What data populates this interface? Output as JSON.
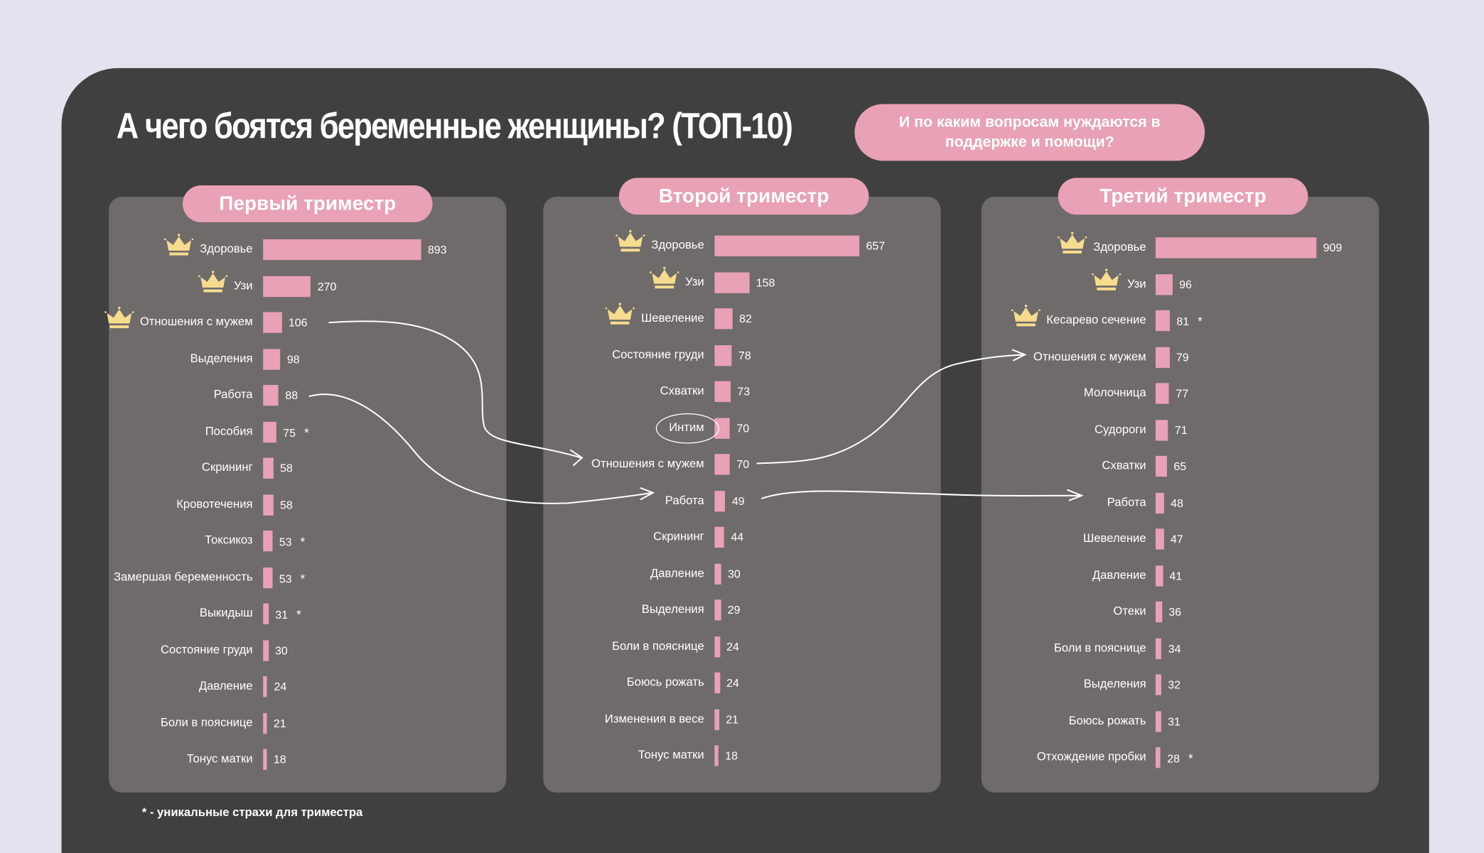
{
  "title": "А чего боятся беременные женщины? (ТОП-10)",
  "question_pill": "И по каким вопросам нуждаются в поддержке и помощи?",
  "footnote": "* - уникальные страхи для триместра",
  "colors": {
    "background": "#e4e2ee",
    "card": "#404040",
    "panel": "#6f6b6a",
    "bar": "#e8a1b5",
    "crown": "#f7dc8f",
    "text": "#ffffff"
  },
  "unique_marker": "*",
  "chart_data": [
    {
      "type": "bar",
      "orientation": "horizontal",
      "title": "Первый триместр",
      "categories": [
        "Здоровье",
        "Узи",
        "Отношения с мужем",
        "Выделения",
        "Работа",
        "Пособия",
        "Скрининг",
        "Кровотечения",
        "Токсикоз",
        "Замершая беременность",
        "Выкидыш",
        "Состояние груди",
        "Давление",
        "Боли в пояснице",
        "Тонус матки"
      ],
      "values": [
        893,
        270,
        106,
        98,
        88,
        75,
        58,
        58,
        53,
        53,
        31,
        30,
        24,
        21,
        18
      ],
      "crowned": [
        "Здоровье",
        "Узи",
        "Отношения с мужем"
      ],
      "unique": [
        "Пособия",
        "Токсикоз",
        "Замершая беременность",
        "Выкидыш"
      ]
    },
    {
      "type": "bar",
      "orientation": "horizontal",
      "title": "Второй триместр",
      "categories": [
        "Здоровье",
        "Узи",
        "Шевеление",
        "Состояние груди",
        "Схватки",
        "Интим",
        "Отношения с мужем",
        "Работа",
        "Скрининг",
        "Давление",
        "Выделения",
        "Боли в пояснице",
        "Боюсь рожать",
        "Изменения в весе",
        "Тонус матки"
      ],
      "values": [
        657,
        158,
        82,
        78,
        73,
        70,
        70,
        49,
        44,
        30,
        29,
        24,
        24,
        21,
        18
      ],
      "crowned": [
        "Здоровье",
        "Узи",
        "Шевеление"
      ],
      "unique": [],
      "circled": [
        "Интим"
      ]
    },
    {
      "type": "bar",
      "orientation": "horizontal",
      "title": "Третий триместр",
      "categories": [
        "Здоровье",
        "Узи",
        "Кесарево сечение",
        "Отношения с мужем",
        "Молочница",
        "Судороги",
        "Схватки",
        "Работа",
        "Шевеление",
        "Давление",
        "Отеки",
        "Боли в пояснице",
        "Выделения",
        "Боюсь рожать",
        "Отхождение пробки"
      ],
      "values": [
        909,
        96,
        81,
        79,
        77,
        71,
        65,
        48,
        47,
        41,
        36,
        34,
        32,
        31,
        28
      ],
      "crowned": [
        "Здоровье",
        "Узи",
        "Кесарево сечение"
      ],
      "unique": [
        "Кесарево сечение",
        "Отхождение пробки"
      ]
    }
  ]
}
